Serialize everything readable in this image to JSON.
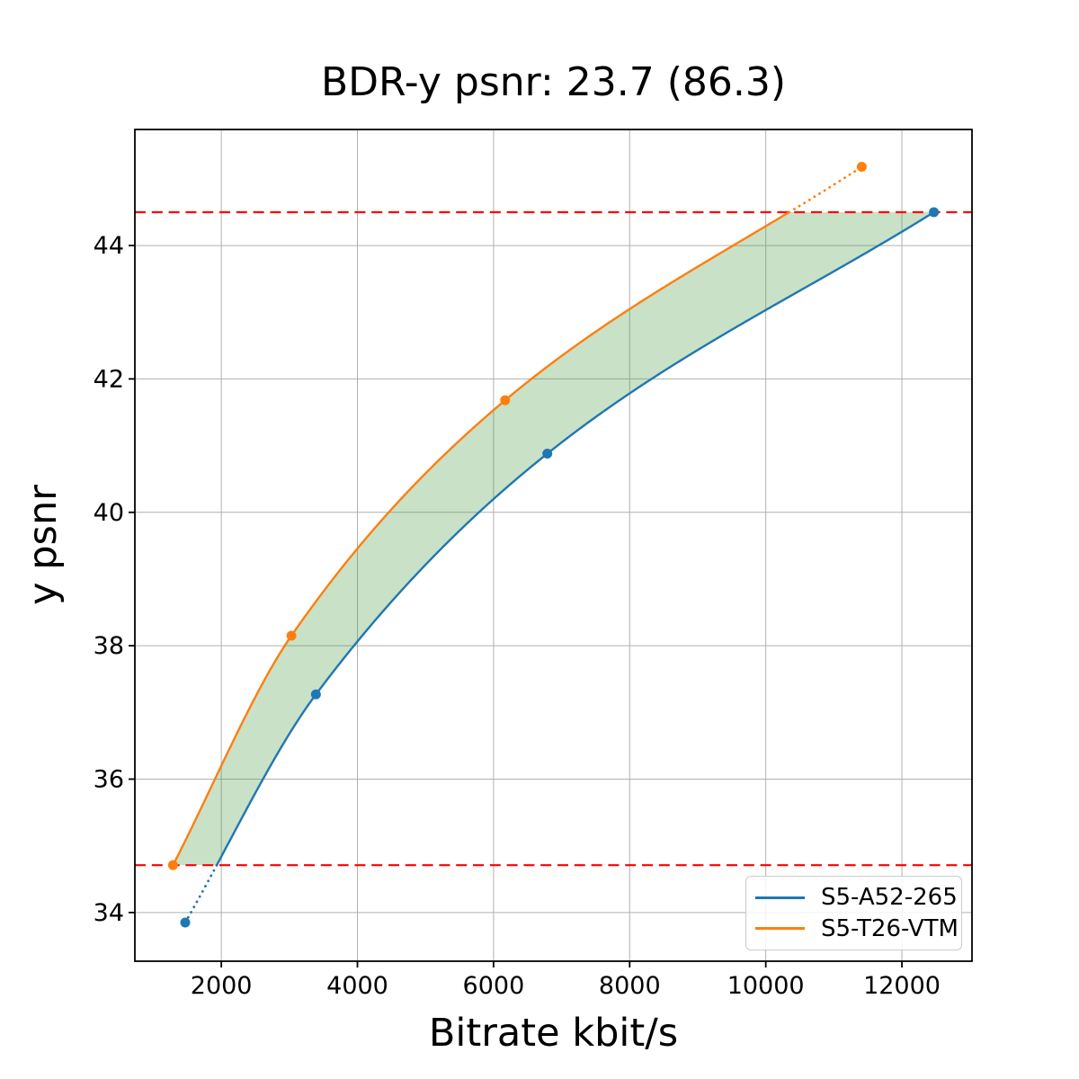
{
  "chart_data": {
    "type": "line",
    "title": "BDR-y psnr: 23.7 (86.3)",
    "xlabel": "Bitrate kbit/s",
    "ylabel": "y psnr",
    "xlim": [
      730,
      13030
    ],
    "ylim": [
      33.27,
      45.74
    ],
    "xticks": [
      2000,
      4000,
      6000,
      8000,
      10000,
      12000
    ],
    "yticks": [
      34,
      36,
      38,
      40,
      42,
      44
    ],
    "grid": true,
    "grid_color": "#b0b0b0",
    "axis_color": "#000000",
    "series": [
      {
        "name": "S5-A52-265",
        "color": "#1f77b4",
        "marker": "circle",
        "points": [
          [
            1470,
            33.85
          ],
          [
            3390,
            37.27
          ],
          [
            6790,
            40.88
          ],
          [
            12470,
            44.5
          ]
        ],
        "out_of_band": "below"
      },
      {
        "name": "S5-T26-VTM",
        "color": "#ff7f0e",
        "marker": "circle",
        "points": [
          [
            1290,
            34.71
          ],
          [
            3030,
            38.15
          ],
          [
            6170,
            41.68
          ],
          [
            11410,
            45.18
          ]
        ],
        "out_of_band": "above"
      }
    ],
    "hlines": [
      {
        "y": 34.71,
        "color": "#ff0000",
        "style": "dashed"
      },
      {
        "y": 44.5,
        "color": "#ff0000",
        "style": "dashed"
      }
    ],
    "fill_between": {
      "y_min": 34.71,
      "y_max": 44.5,
      "color": "#4c9a43",
      "opacity": 0.3
    },
    "legend": {
      "position": "lower right",
      "entries": [
        "S5-A52-265",
        "S5-T26-VTM"
      ]
    }
  }
}
